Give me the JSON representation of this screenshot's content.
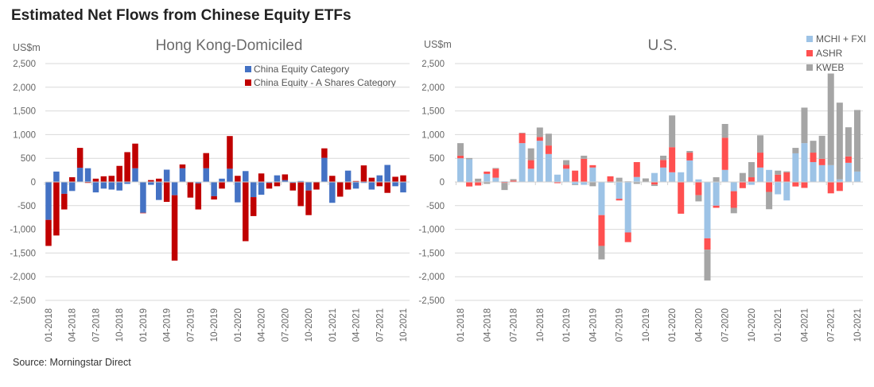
{
  "title": "Estimated Net Flows from Chinese Equity ETFs",
  "source": "Source: Morningstar Direct",
  "chart_data": [
    {
      "type": "bar",
      "stacked": true,
      "title": "Hong Kong-Domiciled",
      "ylabel": "US$m",
      "ylim": [
        -2500,
        2500
      ],
      "yticks": [
        2500,
        2000,
        1500,
        1000,
        500,
        0,
        -500,
        -1000,
        -1500,
        -2000,
        -2500
      ],
      "ytick_labels": [
        "2,500",
        "2,000",
        "1,500",
        "1,000",
        "500",
        "0",
        "-500",
        "-1,000",
        "-1,500",
        "-2,000",
        "-2,500"
      ],
      "xtick_labels": [
        "01-2018",
        "04-2018",
        "07-2018",
        "10-2018",
        "01-2019",
        "04-2019",
        "07-2019",
        "10-2019",
        "01-2020",
        "04-2020",
        "07-2020",
        "10-2020",
        "01-2021",
        "04-2021",
        "07-2021",
        "10-2021"
      ],
      "grid": true,
      "legend": "top-right",
      "series": [
        {
          "name": "China Equity Category",
          "color": "#4472c4",
          "values": [
            -800,
            220,
            -250,
            -190,
            300,
            290,
            -220,
            -140,
            -160,
            -180,
            -40,
            290,
            -650,
            -60,
            -380,
            260,
            -280,
            290,
            0,
            -30,
            290,
            -300,
            70,
            280,
            -430,
            230,
            -320,
            -270,
            -20,
            140,
            40,
            -20,
            20,
            -180,
            0,
            510,
            -440,
            0,
            240,
            -140,
            -20,
            -160,
            140,
            360,
            -90,
            -220
          ]
        },
        {
          "name": "China Equity - A Shares Category",
          "color": "#c00000",
          "values": [
            -550,
            -1130,
            -330,
            100,
            420,
            -20,
            70,
            120,
            130,
            340,
            630,
            520,
            -10,
            40,
            70,
            -420,
            -1380,
            80,
            -330,
            -550,
            320,
            -70,
            -140,
            690,
            130,
            -1250,
            -400,
            180,
            -120,
            -90,
            120,
            -160,
            -510,
            -520,
            -160,
            200,
            130,
            -310,
            -160,
            20,
            350,
            90,
            -90,
            -230,
            110,
            140
          ]
        }
      ]
    },
    {
      "type": "bar",
      "stacked": true,
      "title": "U.S.",
      "ylabel": "US$m",
      "ylim": [
        -2500,
        2500
      ],
      "yticks": [
        2500,
        2000,
        1500,
        1000,
        500,
        0,
        -500,
        -1000,
        -1500,
        -2000,
        -2500
      ],
      "ytick_labels": [
        "2,500",
        "2,000",
        "1,500",
        "1,000",
        "500",
        "0",
        "-500",
        "-1,000",
        "-1,500",
        "-2,000",
        "-2,500"
      ],
      "xtick_labels": [
        "01-2018",
        "04-2018",
        "07-2018",
        "10-2018",
        "01-2019",
        "04-2019",
        "07-2019",
        "10-2019",
        "01-2020",
        "04-2020",
        "07-2020",
        "10-2020",
        "01-2021",
        "04-2021",
        "07-2021",
        "10-2021"
      ],
      "grid": true,
      "legend": "top-right",
      "series": [
        {
          "name": "MCHI + FXI",
          "color": "#9dc3e6",
          "values": [
            500,
            480,
            0,
            170,
            90,
            15,
            0,
            820,
            280,
            870,
            590,
            155,
            280,
            -50,
            -60,
            305,
            -700,
            0,
            -355,
            -1065,
            105,
            0,
            190,
            305,
            205,
            205,
            455,
            55,
            -1190,
            -500,
            255,
            -195,
            0,
            -60,
            305,
            255,
            -260,
            -390,
            605,
            820,
            420,
            355,
            355,
            55,
            405,
            220
          ]
        },
        {
          "name": "ASHR",
          "color": "#ff5050",
          "values": [
            55,
            -95,
            -75,
            50,
            190,
            -20,
            30,
            210,
            180,
            80,
            180,
            -25,
            80,
            240,
            490,
            50,
            -650,
            120,
            -35,
            -205,
            315,
            5,
            -55,
            160,
            530,
            -670,
            165,
            -280,
            -240,
            -45,
            680,
            -350,
            -130,
            100,
            315,
            -210,
            155,
            205,
            -95,
            -125,
            200,
            135,
            -240,
            -190,
            135,
            0
          ]
        },
        {
          "name": "KWEB",
          "color": "#a5a5a5",
          "values": [
            265,
            25,
            70,
            -40,
            15,
            -150,
            30,
            10,
            250,
            200,
            250,
            0,
            100,
            -15,
            65,
            -90,
            -285,
            -15,
            90,
            15,
            -40,
            70,
            -30,
            90,
            670,
            0,
            35,
            -130,
            -650,
            100,
            290,
            -115,
            190,
            320,
            365,
            -365,
            85,
            20,
            115,
            750,
            250,
            485,
            1935,
            1620,
            615,
            1300
          ]
        }
      ]
    }
  ]
}
